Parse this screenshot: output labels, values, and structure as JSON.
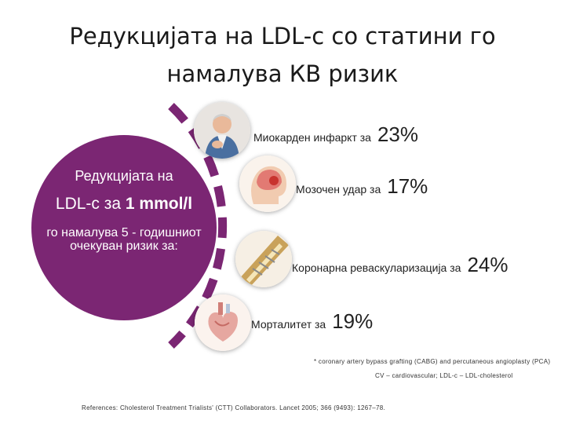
{
  "title": {
    "line1": "Редукцијата на LDL-c со статини го",
    "line2": "намалува КВ ризик"
  },
  "circle": {
    "line1": "Редукцијата на",
    "line2_prefix": "LDL-c за ",
    "line2_bold": "1 mmol/l",
    "line3": "го намалува 5 - годишниот очекуван ризик за:"
  },
  "items": [
    {
      "label": "Миокарден инфаркт за",
      "value": "23%",
      "icon": "heart-attack-man-icon"
    },
    {
      "label": "Мозочен удар за",
      "value": "17%",
      "icon": "brain-stroke-icon"
    },
    {
      "label": "Коронарна реваскуларизација за",
      "value": "24%",
      "icon": "artery-stent-icon"
    },
    {
      "label": "Морталитет за",
      "value": "19%",
      "icon": "heart-anatomy-icon"
    }
  ],
  "footnotes": {
    "asterisk": "* coronary artery bypass grafting (CABG) and percutaneous angioplasty (PCA)",
    "abbrev": "CV – cardiovascular; LDL-c – LDL-cholesterol",
    "references": "References: Cholesterol Treatment Trialists' (CTT) Collaborators. Lancet 2005; 366 (9493): 1267–78."
  },
  "colors": {
    "accent": "#7b2673"
  }
}
